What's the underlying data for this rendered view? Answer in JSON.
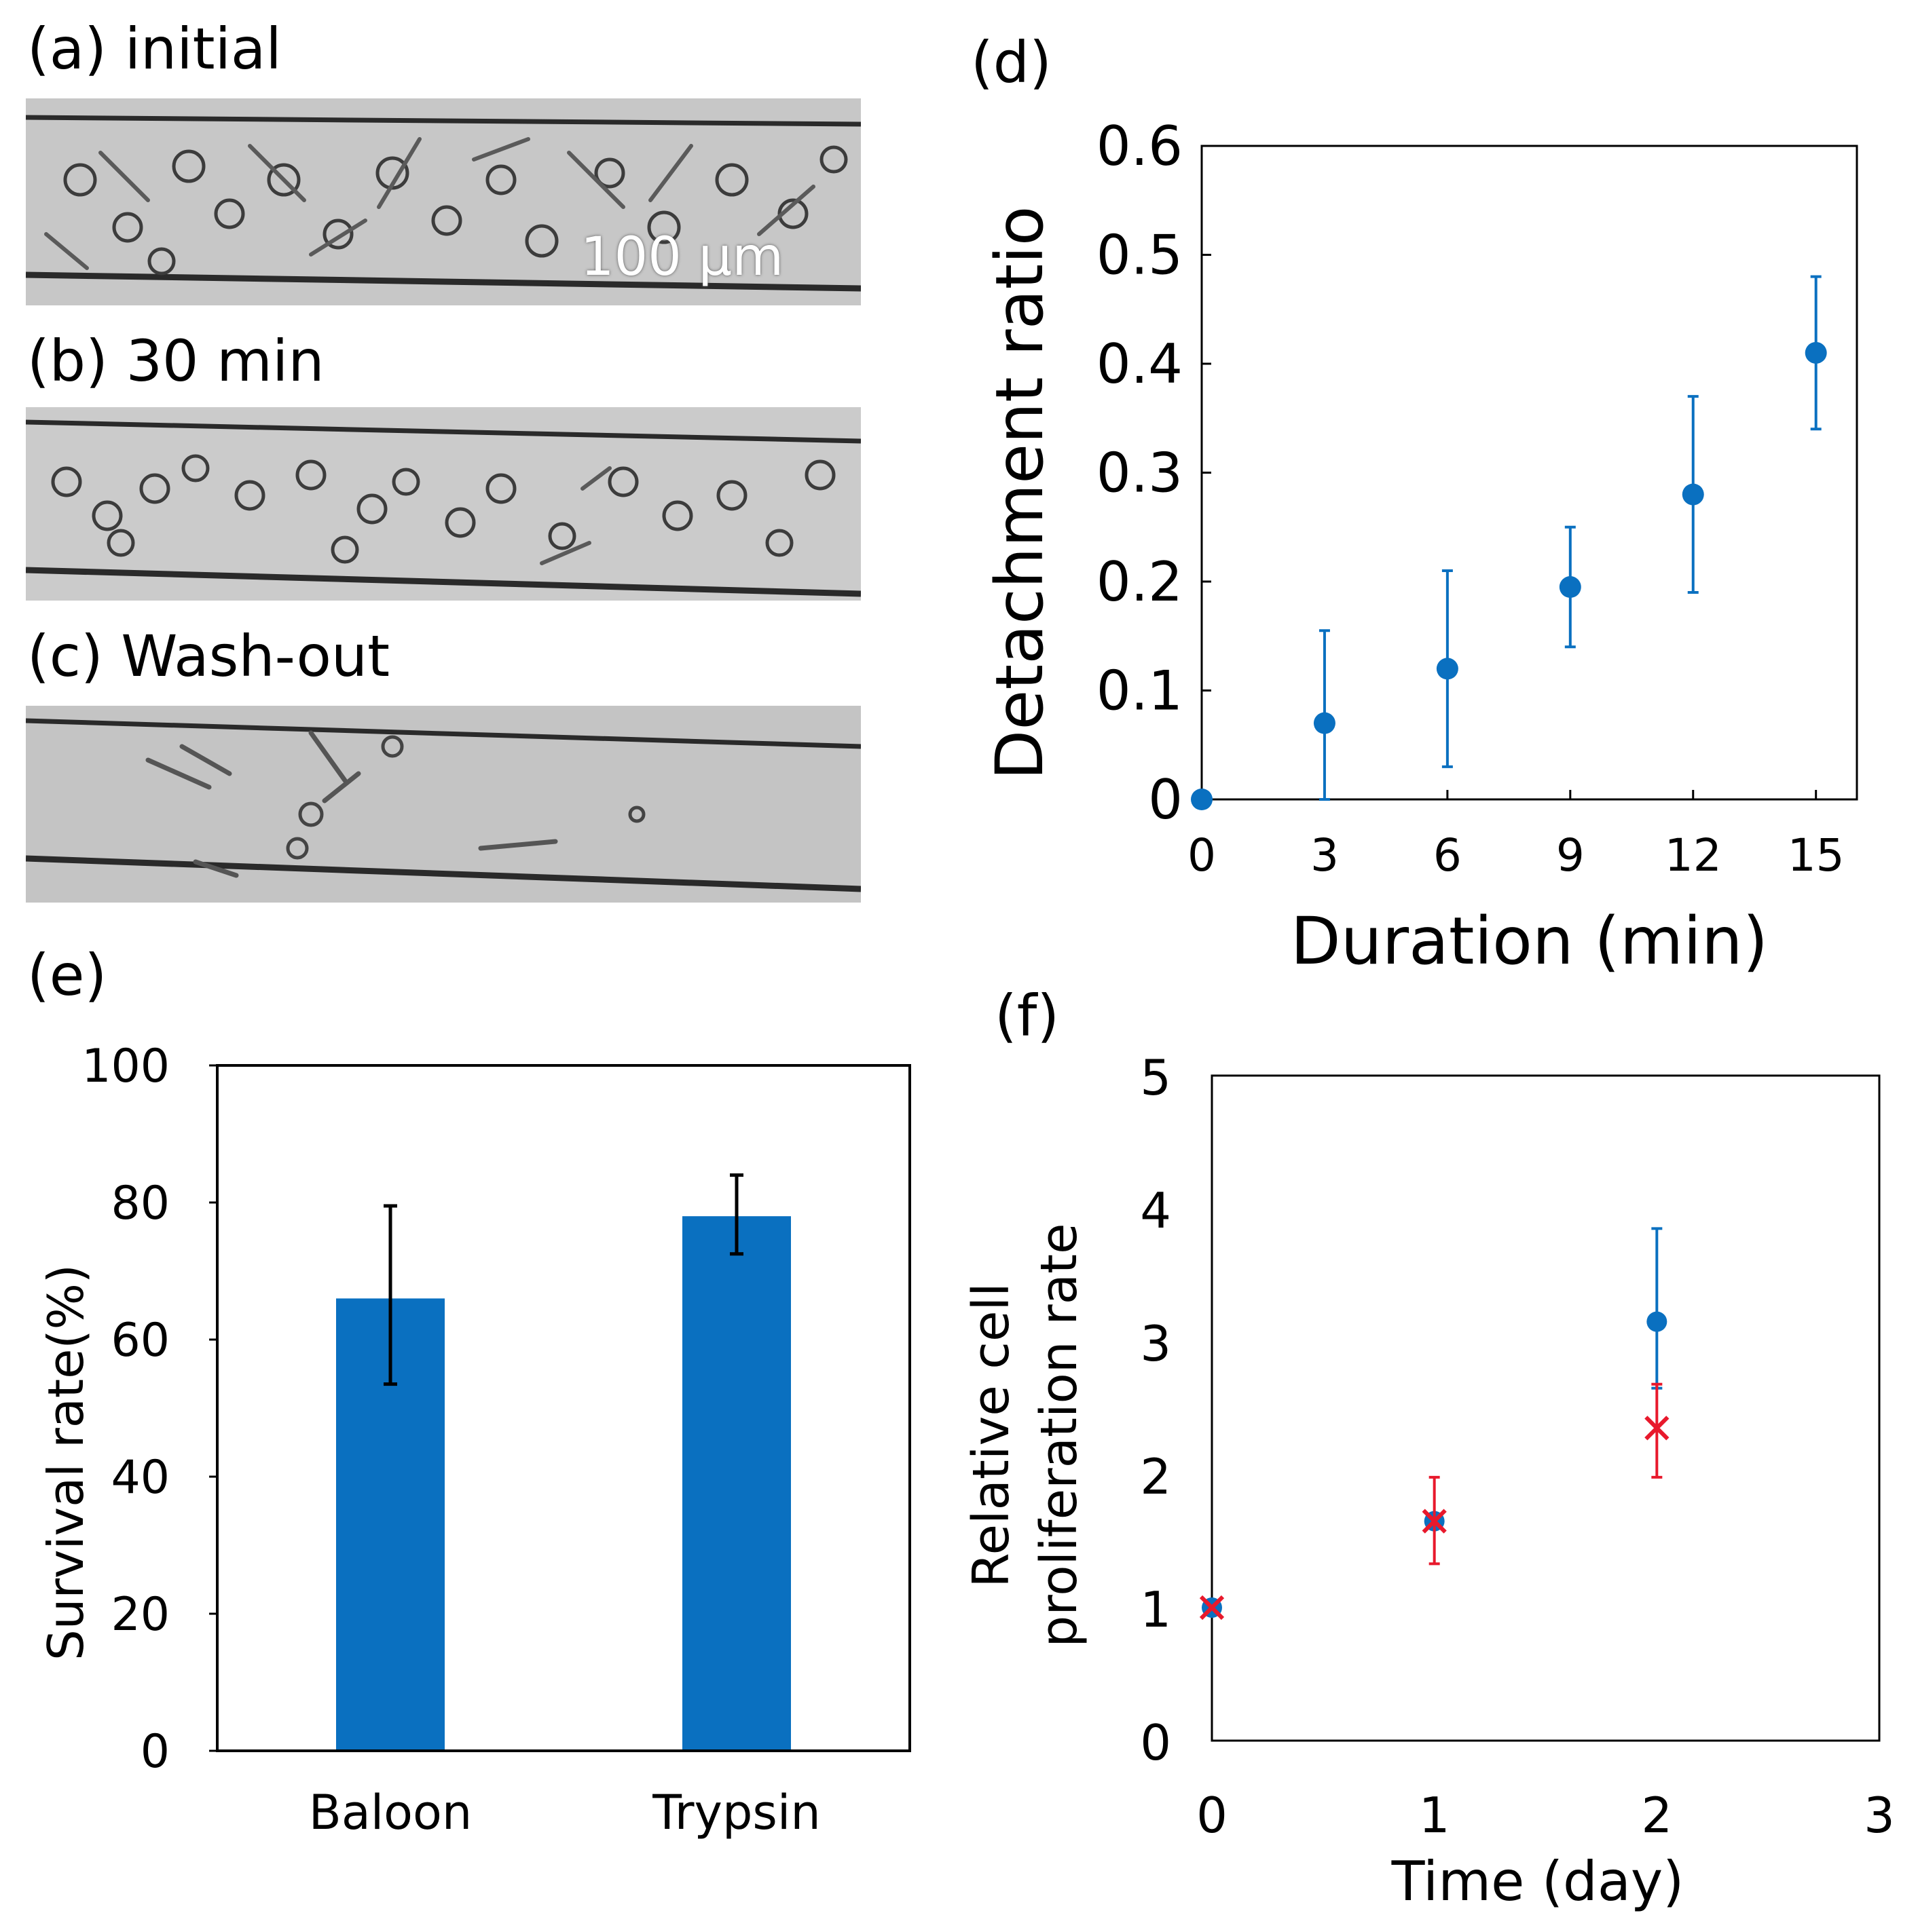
{
  "panels": {
    "a": {
      "label": "(a) initial",
      "scale_bar": "100 μm"
    },
    "b": {
      "label": "(b) 30 min"
    },
    "c": {
      "label": "(c) Wash-out"
    },
    "d": {
      "label": "(d)"
    },
    "e": {
      "label": "(e)"
    },
    "f": {
      "label": "(f)"
    }
  },
  "colors": {
    "blue": "#0a70c0",
    "red": "#e8192c",
    "axis": "#000000",
    "bar_error": "#000000"
  },
  "chart_data": [
    {
      "id": "d",
      "type": "scatter",
      "xlabel": "Duration (min)",
      "ylabel": "Detachment ratio",
      "xlim": [
        0,
        16
      ],
      "ylim": [
        0,
        0.6
      ],
      "xticks": [
        0,
        3,
        6,
        9,
        12,
        15
      ],
      "xtick_labels": [
        "0",
        "3",
        "6",
        "9",
        "12",
        "15"
      ],
      "yticks": [
        0,
        0.1,
        0.2,
        0.3,
        0.4,
        0.5,
        0.6
      ],
      "ytick_labels": [
        "0",
        "0.1",
        "0.2",
        "0.3",
        "0.4",
        "0.5",
        "0.6"
      ],
      "series": [
        {
          "name": "detachment",
          "color": "#0a70c0",
          "x": [
            0,
            3,
            6,
            9,
            12,
            15
          ],
          "y": [
            0.0,
            0.07,
            0.12,
            0.195,
            0.28,
            0.41
          ],
          "err_low": [
            0.0,
            0.07,
            0.09,
            0.055,
            0.09,
            0.07
          ],
          "err_high": [
            0.0,
            0.085,
            0.09,
            0.055,
            0.09,
            0.07
          ]
        }
      ]
    },
    {
      "id": "e",
      "type": "bar",
      "xlabel": "",
      "ylabel": "Survival rate(%)",
      "ylim": [
        0,
        100
      ],
      "yticks": [
        0,
        20,
        40,
        60,
        80,
        100
      ],
      "ytick_labels": [
        "0",
        "20",
        "40",
        "60",
        "80",
        "100"
      ],
      "categories": [
        "Baloon",
        "Trypsin"
      ],
      "values": [
        66,
        78
      ],
      "errors_low": [
        12.5,
        5.5
      ],
      "errors_high": [
        13.5,
        6
      ],
      "color": "#0a70c0"
    },
    {
      "id": "f",
      "type": "scatter",
      "xlabel": "Time (day)",
      "ylabel": "Relative cell proliferation rate",
      "ylabel_lines": [
        "Relative cell",
        "proliferation rate"
      ],
      "xlim": [
        0,
        3
      ],
      "ylim": [
        0,
        5
      ],
      "xticks": [
        0,
        1,
        2,
        3
      ],
      "xtick_labels": [
        "0",
        "1",
        "2",
        "3"
      ],
      "yticks": [
        0,
        1,
        2,
        3,
        4,
        5
      ],
      "ytick_labels": [
        "0",
        "1",
        "2",
        "3",
        "4",
        "5"
      ],
      "series": [
        {
          "name": "blue",
          "marker": "circle",
          "color": "#0a70c0",
          "x": [
            0,
            1,
            2
          ],
          "y": [
            1.0,
            1.65,
            3.15
          ],
          "err_low": [
            0.0,
            0.0,
            0.5
          ],
          "err_high": [
            0.0,
            0.0,
            0.7
          ]
        },
        {
          "name": "red",
          "marker": "x",
          "color": "#e8192c",
          "x": [
            0,
            1,
            2
          ],
          "y": [
            1.0,
            1.65,
            2.35
          ],
          "err_low": [
            0.0,
            0.32,
            0.37
          ],
          "err_high": [
            0.0,
            0.33,
            0.33
          ]
        }
      ]
    }
  ]
}
